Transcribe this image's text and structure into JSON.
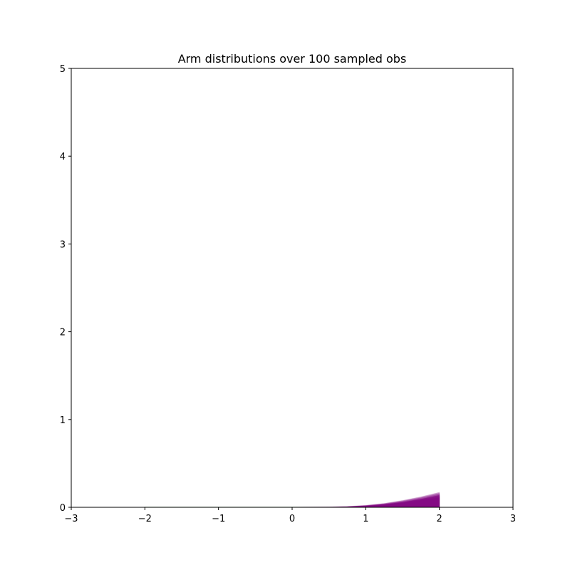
{
  "chart_data": {
    "type": "area",
    "title": "Arm distributions over 100 sampled obs",
    "xlabel": "",
    "ylabel": "",
    "xlim": [
      -3,
      3
    ],
    "ylim": [
      0,
      5
    ],
    "xticks": [
      -3,
      -2,
      -1,
      0,
      1,
      2,
      3
    ],
    "yticks": [
      0,
      1,
      2,
      3,
      4,
      5
    ],
    "x_tick_labels": [
      "−3",
      "−2",
      "−1",
      "0",
      "1",
      "2",
      "3"
    ],
    "y_tick_labels": [
      "0",
      "1",
      "2",
      "3",
      "4",
      "5"
    ],
    "grid": false,
    "colors": {
      "purple_arm": "#800080",
      "green_arm": "#008000",
      "axes": "#000000"
    },
    "series": [
      {
        "color": "#800080",
        "fill_alpha": 0.08,
        "x": [
          -2.0,
          -1.5,
          -1.0,
          -0.5,
          0.0,
          0.5,
          0.75,
          1.0,
          1.25,
          1.5,
          1.75,
          2.0
        ],
        "y_samples": [
          [
            0,
            0,
            0,
            0,
            0,
            0.001,
            0.004,
            0.012,
            0.028,
            0.052,
            0.085,
            0.12
          ],
          [
            0,
            0,
            0,
            0,
            0,
            0.002,
            0.006,
            0.016,
            0.034,
            0.06,
            0.095,
            0.135
          ],
          [
            0,
            0,
            0,
            0,
            0,
            0.002,
            0.007,
            0.018,
            0.038,
            0.067,
            0.105,
            0.15
          ],
          [
            0,
            0,
            0,
            0,
            0,
            0.003,
            0.008,
            0.02,
            0.041,
            0.072,
            0.112,
            0.16
          ],
          [
            0,
            0,
            0,
            0,
            0,
            0.003,
            0.009,
            0.022,
            0.045,
            0.078,
            0.12,
            0.17
          ],
          [
            0,
            0,
            0,
            0,
            0,
            0.001,
            0.005,
            0.014,
            0.03,
            0.056,
            0.09,
            0.13
          ],
          [
            0,
            0,
            0,
            0,
            0,
            0.001,
            0.003,
            0.01,
            0.024,
            0.046,
            0.076,
            0.11
          ],
          [
            0,
            0,
            0,
            0,
            0,
            0.002,
            0.006,
            0.015,
            0.032,
            0.058,
            0.092,
            0.14
          ]
        ]
      },
      {
        "color": "#008000",
        "fill_alpha": 0.08,
        "x": [
          -2.0,
          -1.0,
          0.0,
          0.5,
          1.0,
          1.5,
          2.0
        ],
        "y_samples": [
          [
            0.004,
            0.004,
            0.004,
            0.003,
            0.002,
            0.001,
            0.0005
          ]
        ]
      }
    ]
  }
}
